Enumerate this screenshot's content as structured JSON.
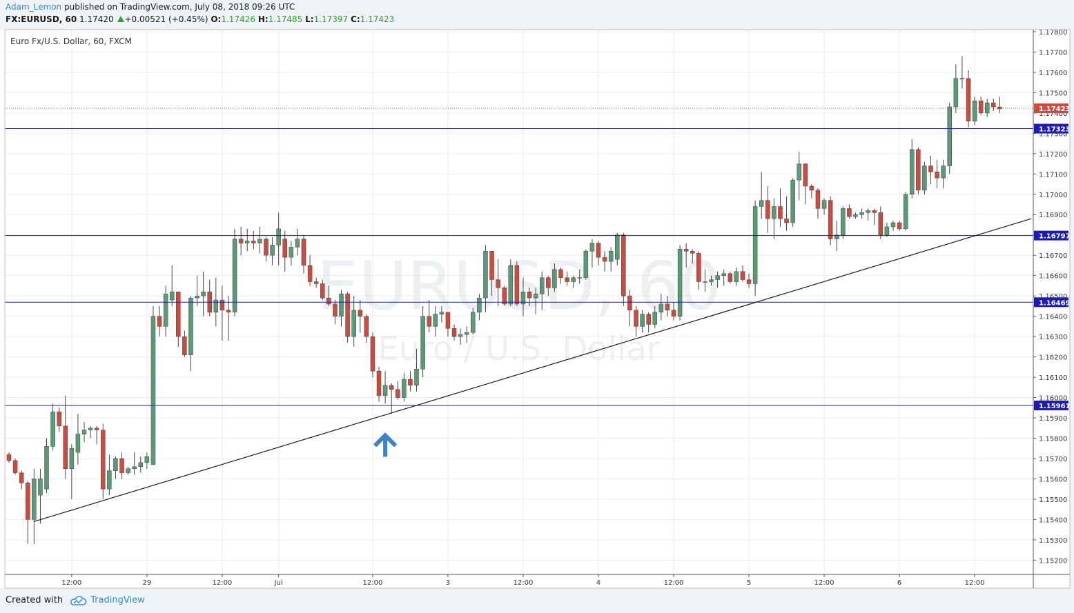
{
  "header": {
    "author": "Adam_Lemon",
    "published_text": "published on TradingView.com, July 08, 2018 09:26 UTC",
    "symbol": "FX:EURUSD, 60",
    "last": "1.17420",
    "change": "+0.00521 (+0.45%)",
    "o_label": "O:",
    "o_value": "1.17426",
    "h_label": "H:",
    "h_value": "1.17485",
    "l_label": "L:",
    "l_value": "1.17397",
    "c_label": "C:",
    "c_value": "1.17423"
  },
  "footer": {
    "created_with": "Created with",
    "brand": "TradingView"
  },
  "chart_data": {
    "type": "candlestick",
    "legend": "Euro Fx/U.S. Dollar, 60, FXCM",
    "watermark": {
      "symbol": "EURUSD, 60",
      "description": "Euro / U.S. Dollar"
    },
    "ylim": [
      1.1513,
      1.1781
    ],
    "y_ticks": [
      "1.17800",
      "1.17700",
      "1.17600",
      "1.17500",
      "1.17400",
      "1.17300",
      "1.17200",
      "1.17100",
      "1.17000",
      "1.16900",
      "1.16800",
      "1.16700",
      "1.16600",
      "1.16500",
      "1.16400",
      "1.16300",
      "1.16200",
      "1.16100",
      "1.16000",
      "1.15900",
      "1.15800",
      "1.15700",
      "1.15600",
      "1.15500",
      "1.15400",
      "1.15300",
      "1.15200"
    ],
    "x_ticks": [
      {
        "bar": 10,
        "label": "12:00"
      },
      {
        "bar": 22,
        "label": "29"
      },
      {
        "bar": 34,
        "label": "12:00"
      },
      {
        "bar": 43,
        "label": "Jul"
      },
      {
        "bar": 58,
        "label": "12:00"
      },
      {
        "bar": 70,
        "label": "3"
      },
      {
        "bar": 82,
        "label": "12:00"
      },
      {
        "bar": 94,
        "label": "4"
      },
      {
        "bar": 106,
        "label": "12:00"
      },
      {
        "bar": 118,
        "label": "5"
      },
      {
        "bar": 130,
        "label": "12:00"
      },
      {
        "bar": 142,
        "label": "6"
      },
      {
        "bar": 154,
        "label": "12:00"
      }
    ],
    "colors": {
      "up": "#5b9a77",
      "down": "#cc4b3e",
      "level_line": "#1c1cb0",
      "trendline": "#1a1a1a",
      "last_price": "#cc4b3e",
      "arrow": "#3d84c6"
    },
    "horizontal_levels": [
      "1.17323",
      "1.16797",
      "1.16469",
      "1.15961"
    ],
    "last_price": "1.17423",
    "trendline": {
      "start": {
        "bar": 4,
        "price": 1.1539
      },
      "end": {
        "bar": 163,
        "price": 1.1688
      }
    },
    "arrow_marker": {
      "bar": 60,
      "price": 1.1577
    },
    "candles": [
      [
        1.1572,
        1.1573,
        1.1568,
        1.1569
      ],
      [
        1.1569,
        1.157,
        1.1562,
        1.1563
      ],
      [
        1.1563,
        1.1564,
        1.1555,
        1.1558
      ],
      [
        1.1558,
        1.1559,
        1.1528,
        1.154
      ],
      [
        1.154,
        1.1565,
        1.1528,
        1.156
      ],
      [
        1.1552,
        1.1565,
        1.1538,
        1.156
      ],
      [
        1.1555,
        1.158,
        1.1553,
        1.1576
      ],
      [
        1.1576,
        1.1597,
        1.1574,
        1.1593
      ],
      [
        1.1593,
        1.1595,
        1.1583,
        1.1586
      ],
      [
        1.1586,
        1.1601,
        1.156,
        1.1565
      ],
      [
        1.1565,
        1.1577,
        1.155,
        1.1575
      ],
      [
        1.1573,
        1.1592,
        1.1567,
        1.1582
      ],
      [
        1.1582,
        1.1588,
        1.1578,
        1.1584
      ],
      [
        1.1584,
        1.1586,
        1.158,
        1.1585
      ],
      [
        1.1585,
        1.1586,
        1.1577,
        1.1584
      ],
      [
        1.1584,
        1.1587,
        1.155,
        1.1555
      ],
      [
        1.1555,
        1.1572,
        1.1552,
        1.1564
      ],
      [
        1.1564,
        1.1571,
        1.156,
        1.157
      ],
      [
        1.157,
        1.1573,
        1.156,
        1.1563
      ],
      [
        1.1563,
        1.1566,
        1.1562,
        1.1565
      ],
      [
        1.1565,
        1.1573,
        1.1562,
        1.1566
      ],
      [
        1.1566,
        1.1571,
        1.1563,
        1.1568
      ],
      [
        1.1568,
        1.1573,
        1.1565,
        1.1571
      ],
      [
        1.1567,
        1.1645,
        1.1567,
        1.164
      ],
      [
        1.164,
        1.1645,
        1.163,
        1.1635
      ],
      [
        1.1635,
        1.1655,
        1.163,
        1.1651
      ],
      [
        1.1648,
        1.1665,
        1.1645,
        1.1652
      ],
      [
        1.1652,
        1.1651,
        1.1625,
        1.163
      ],
      [
        1.163,
        1.1633,
        1.162,
        1.1621
      ],
      [
        1.1621,
        1.165,
        1.1613,
        1.1649
      ],
      [
        1.1649,
        1.166,
        1.1645,
        1.165
      ],
      [
        1.165,
        1.1662,
        1.164,
        1.1652
      ],
      [
        1.1652,
        1.1658,
        1.164,
        1.1642
      ],
      [
        1.1642,
        1.1659,
        1.1635,
        1.1648
      ],
      [
        1.1648,
        1.1655,
        1.1628,
        1.1643
      ],
      [
        1.1643,
        1.165,
        1.1628,
        1.1642
      ],
      [
        1.1642,
        1.1683,
        1.164,
        1.1678
      ],
      [
        1.1678,
        1.1684,
        1.167,
        1.1676
      ],
      [
        1.1676,
        1.1683,
        1.1672,
        1.1677
      ],
      [
        1.1677,
        1.1682,
        1.1673,
        1.1676
      ],
      [
        1.1676,
        1.1684,
        1.1671,
        1.1678
      ],
      [
        1.1678,
        1.1679,
        1.1667,
        1.167
      ],
      [
        1.167,
        1.1679,
        1.1665,
        1.1675
      ],
      [
        1.1675,
        1.1691,
        1.1665,
        1.1683
      ],
      [
        1.1678,
        1.1682,
        1.1662,
        1.1669
      ],
      [
        1.1669,
        1.1677,
        1.1665,
        1.1674
      ],
      [
        1.1674,
        1.1683,
        1.167,
        1.1678
      ],
      [
        1.1678,
        1.168,
        1.1661,
        1.1665
      ],
      [
        1.1665,
        1.167,
        1.1655,
        1.1657
      ],
      [
        1.1657,
        1.1659,
        1.1654,
        1.1656
      ],
      [
        1.1656,
        1.1658,
        1.1648,
        1.1649
      ],
      [
        1.1649,
        1.1655,
        1.1645,
        1.1646
      ],
      [
        1.1646,
        1.1648,
        1.1636,
        1.164
      ],
      [
        1.164,
        1.1653,
        1.1635,
        1.1651
      ],
      [
        1.1651,
        1.1652,
        1.1627,
        1.163
      ],
      [
        1.163,
        1.165,
        1.1625,
        1.1643
      ],
      [
        1.1643,
        1.1648,
        1.1632,
        1.164
      ],
      [
        1.164,
        1.1641,
        1.1627,
        1.163
      ],
      [
        1.163,
        1.1632,
        1.161,
        1.1613
      ],
      [
        1.1613,
        1.1615,
        1.1598,
        1.1601
      ],
      [
        1.1601,
        1.1613,
        1.1597,
        1.1606
      ],
      [
        1.1606,
        1.1607,
        1.1592,
        1.1604
      ],
      [
        1.1604,
        1.1608,
        1.1599,
        1.16
      ],
      [
        1.16,
        1.1612,
        1.1598,
        1.1609
      ],
      [
        1.1609,
        1.1613,
        1.1603,
        1.1606
      ],
      [
        1.1606,
        1.1624,
        1.1603,
        1.1614
      ],
      [
        1.1614,
        1.1645,
        1.161,
        1.164
      ],
      [
        1.164,
        1.1648,
        1.1632,
        1.1635
      ],
      [
        1.1635,
        1.1645,
        1.163,
        1.1641
      ],
      [
        1.1641,
        1.1645,
        1.1637,
        1.1642
      ],
      [
        1.1642,
        1.1641,
        1.163,
        1.1634
      ],
      [
        1.1634,
        1.1636,
        1.1628,
        1.163
      ],
      [
        1.163,
        1.1634,
        1.1626,
        1.1631
      ],
      [
        1.1631,
        1.1635,
        1.1627,
        1.1632
      ],
      [
        1.1632,
        1.1644,
        1.1631,
        1.1642
      ],
      [
        1.1642,
        1.1651,
        1.1638,
        1.1649
      ],
      [
        1.1649,
        1.1675,
        1.1642,
        1.1672
      ],
      [
        1.1672,
        1.1671,
        1.165,
        1.1658
      ],
      [
        1.1658,
        1.1668,
        1.1645,
        1.1654
      ],
      [
        1.1654,
        1.1655,
        1.1645,
        1.1646
      ],
      [
        1.1646,
        1.1668,
        1.1645,
        1.1665
      ],
      [
        1.1665,
        1.1667,
        1.1645,
        1.1646
      ],
      [
        1.1646,
        1.1659,
        1.164,
        1.1652
      ],
      [
        1.1652,
        1.1654,
        1.1645,
        1.1649
      ],
      [
        1.1649,
        1.1654,
        1.1641,
        1.1651
      ],
      [
        1.1651,
        1.1662,
        1.1643,
        1.1659
      ],
      [
        1.1659,
        1.166,
        1.165,
        1.1654
      ],
      [
        1.1654,
        1.1666,
        1.1652,
        1.1663
      ],
      [
        1.1663,
        1.1664,
        1.1656,
        1.1659
      ],
      [
        1.1659,
        1.1662,
        1.1655,
        1.1657
      ],
      [
        1.1657,
        1.166,
        1.1654,
        1.1659
      ],
      [
        1.1659,
        1.1663,
        1.1656,
        1.1659
      ],
      [
        1.1659,
        1.1673,
        1.1658,
        1.1672
      ],
      [
        1.1672,
        1.1678,
        1.1664,
        1.1676
      ],
      [
        1.1676,
        1.1677,
        1.1665,
        1.1669
      ],
      [
        1.1669,
        1.1672,
        1.1662,
        1.1667
      ],
      [
        1.1667,
        1.1674,
        1.1662,
        1.1672
      ],
      [
        1.1668,
        1.1681,
        1.1665,
        1.168
      ],
      [
        1.168,
        1.1681,
        1.1645,
        1.165
      ],
      [
        1.165,
        1.1653,
        1.1635,
        1.1643
      ],
      [
        1.1643,
        1.1645,
        1.163,
        1.1635
      ],
      [
        1.1635,
        1.1643,
        1.1632,
        1.1641
      ],
      [
        1.1641,
        1.1642,
        1.1632,
        1.1636
      ],
      [
        1.1636,
        1.1645,
        1.1634,
        1.1642
      ],
      [
        1.1642,
        1.1651,
        1.1638,
        1.1646
      ],
      [
        1.1646,
        1.165,
        1.164,
        1.1643
      ],
      [
        1.1643,
        1.1647,
        1.1638,
        1.164
      ],
      [
        1.164,
        1.1675,
        1.1638,
        1.1673
      ],
      [
        1.1673,
        1.1676,
        1.1664,
        1.1672
      ],
      [
        1.1672,
        1.1673,
        1.1666,
        1.1671
      ],
      [
        1.1671,
        1.1672,
        1.1653,
        1.1657
      ],
      [
        1.1657,
        1.1663,
        1.1652,
        1.1657
      ],
      [
        1.1657,
        1.166,
        1.1655,
        1.1658
      ],
      [
        1.1658,
        1.1662,
        1.1654,
        1.166
      ],
      [
        1.166,
        1.1663,
        1.1655,
        1.1661
      ],
      [
        1.1661,
        1.1662,
        1.1656,
        1.1657
      ],
      [
        1.1657,
        1.1664,
        1.1655,
        1.1662
      ],
      [
        1.1662,
        1.1665,
        1.1657,
        1.1658
      ],
      [
        1.1658,
        1.1661,
        1.1654,
        1.1656
      ],
      [
        1.1656,
        1.1697,
        1.165,
        1.1694
      ],
      [
        1.1694,
        1.1711,
        1.1688,
        1.1697
      ],
      [
        1.1697,
        1.1704,
        1.1681,
        1.1688
      ],
      [
        1.1688,
        1.1698,
        1.1678,
        1.1694
      ],
      [
        1.1694,
        1.1703,
        1.1684,
        1.1688
      ],
      [
        1.1688,
        1.1699,
        1.1682,
        1.1686
      ],
      [
        1.1686,
        1.1708,
        1.1684,
        1.1707
      ],
      [
        1.1707,
        1.1721,
        1.1697,
        1.1715
      ],
      [
        1.1715,
        1.1714,
        1.1695,
        1.1704
      ],
      [
        1.1704,
        1.1705,
        1.1698,
        1.1702
      ],
      [
        1.1702,
        1.1703,
        1.1688,
        1.1693
      ],
      [
        1.1693,
        1.1698,
        1.169,
        1.1697
      ],
      [
        1.1697,
        1.1699,
        1.1675,
        1.1678
      ],
      [
        1.1678,
        1.1687,
        1.1672,
        1.168
      ],
      [
        1.168,
        1.1694,
        1.1678,
        1.1693
      ],
      [
        1.1693,
        1.1695,
        1.1688,
        1.1689
      ],
      [
        1.1689,
        1.1691,
        1.1688,
        1.169
      ],
      [
        1.169,
        1.1693,
        1.1688,
        1.1691
      ],
      [
        1.1691,
        1.1693,
        1.1687,
        1.1692
      ],
      [
        1.1692,
        1.1693,
        1.1685,
        1.1691
      ],
      [
        1.1691,
        1.1694,
        1.1678,
        1.168
      ],
      [
        1.168,
        1.1686,
        1.1679,
        1.1684
      ],
      [
        1.1684,
        1.1687,
        1.1682,
        1.1686
      ],
      [
        1.1686,
        1.1687,
        1.1682,
        1.1683
      ],
      [
        1.1683,
        1.1701,
        1.1682,
        1.17
      ],
      [
        1.17,
        1.1727,
        1.1698,
        1.1722
      ],
      [
        1.1722,
        1.1723,
        1.17,
        1.1702
      ],
      [
        1.1702,
        1.1716,
        1.17,
        1.1714
      ],
      [
        1.1714,
        1.1719,
        1.1705,
        1.1711
      ],
      [
        1.1711,
        1.1717,
        1.1703,
        1.1708
      ],
      [
        1.1708,
        1.1717,
        1.1703,
        1.1714
      ],
      [
        1.1714,
        1.1745,
        1.171,
        1.1743
      ],
      [
        1.1743,
        1.1764,
        1.174,
        1.1757
      ],
      [
        1.1757,
        1.1768,
        1.1752,
        1.1757
      ],
      [
        1.1757,
        1.1761,
        1.1733,
        1.1736
      ],
      [
        1.1736,
        1.1748,
        1.1734,
        1.1746
      ],
      [
        1.1746,
        1.1748,
        1.1739,
        1.174
      ],
      [
        1.174,
        1.1747,
        1.1738,
        1.1745
      ],
      [
        1.1745,
        1.1747,
        1.1741,
        1.1743
      ],
      [
        1.1743,
        1.1748,
        1.174,
        1.1742
      ]
    ]
  }
}
